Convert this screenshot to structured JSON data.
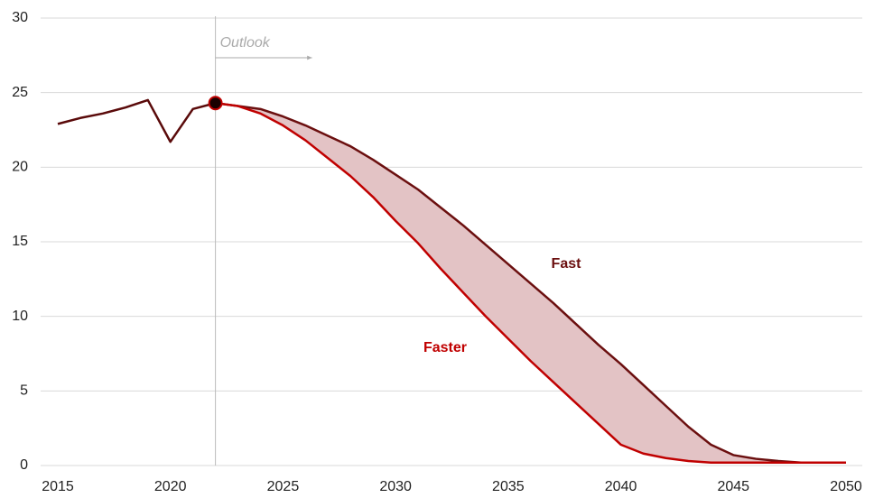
{
  "chart_data": {
    "type": "line",
    "x": [
      2015,
      2016,
      2017,
      2018,
      2019,
      2020,
      2021,
      2022,
      2023,
      2024,
      2025,
      2026,
      2027,
      2028,
      2029,
      2030,
      2031,
      2032,
      2033,
      2034,
      2035,
      2036,
      2037,
      2038,
      2039,
      2040,
      2041,
      2042,
      2043,
      2044,
      2045,
      2046,
      2047,
      2048,
      2049,
      2050
    ],
    "series": [
      {
        "color": "#5a0a0a",
        "values": [
          22.9,
          23.3,
          23.6,
          24.0,
          24.5,
          21.7,
          23.9,
          24.3,
          null,
          null,
          null,
          null,
          null,
          null,
          null,
          null,
          null,
          null,
          null,
          null,
          null,
          null,
          null,
          null,
          null,
          null,
          null,
          null,
          null,
          null,
          null,
          null,
          null,
          null,
          null,
          null
        ]
      },
      {
        "name": "Fast",
        "color": "#6b0f0f",
        "values": [
          null,
          null,
          null,
          null,
          null,
          null,
          null,
          24.3,
          24.1,
          23.9,
          23.4,
          22.8,
          22.1,
          21.4,
          20.5,
          19.5,
          18.5,
          17.3,
          16.1,
          14.8,
          13.5,
          12.2,
          10.9,
          9.5,
          8.1,
          6.8,
          5.4,
          4.0,
          2.6,
          1.4,
          0.7,
          0.45,
          0.3,
          0.2,
          0.2,
          0.2
        ]
      },
      {
        "name": "Faster",
        "color": "#c00000",
        "values": [
          null,
          null,
          null,
          null,
          null,
          null,
          null,
          24.3,
          24.1,
          23.6,
          22.8,
          21.8,
          20.6,
          19.4,
          18.0,
          16.4,
          14.9,
          13.2,
          11.6,
          10.0,
          8.5,
          7.0,
          5.6,
          4.2,
          2.8,
          1.4,
          0.8,
          0.5,
          0.3,
          0.2,
          0.2,
          0.2,
          0.2,
          0.2,
          0.2,
          0.2
        ]
      }
    ],
    "band_color": "#e3c3c5",
    "divider_x": 2022,
    "divider_label": "Outlook",
    "xlim": [
      2015,
      2050
    ],
    "xticks": [
      2015,
      2020,
      2025,
      2030,
      2035,
      2040,
      2045,
      2050
    ],
    "ylim": [
      0,
      30
    ],
    "yticks": [
      0,
      5,
      10,
      15,
      20,
      25,
      30
    ],
    "grid": true
  }
}
